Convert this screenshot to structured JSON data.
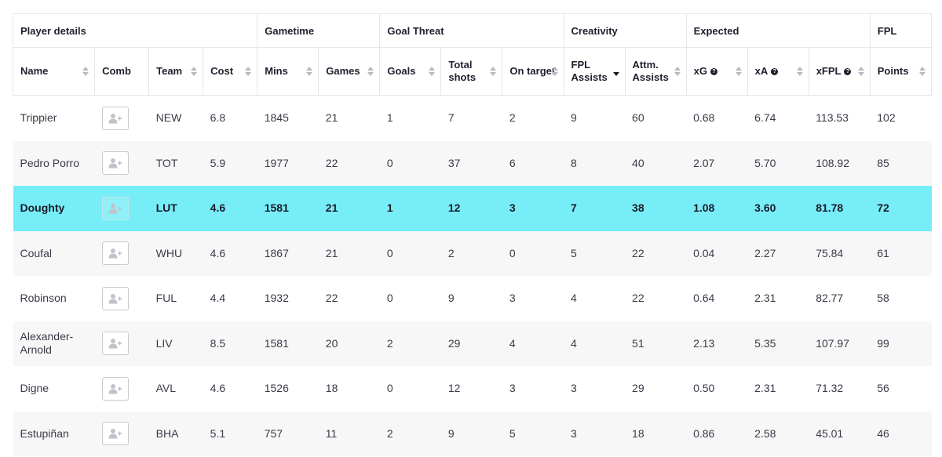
{
  "groups": [
    {
      "label": "Player details",
      "span": 4
    },
    {
      "label": "Gametime",
      "span": 2
    },
    {
      "label": "Goal Threat",
      "span": 3
    },
    {
      "label": "Creativity",
      "span": 2
    },
    {
      "label": "Expected",
      "span": 3
    },
    {
      "label": "FPL",
      "span": 1
    }
  ],
  "columns": [
    {
      "label": "Name",
      "sortable": true,
      "sorted": false,
      "help": false
    },
    {
      "label": "Comb",
      "sortable": false,
      "sorted": false,
      "help": false
    },
    {
      "label": "Team",
      "sortable": true,
      "sorted": false,
      "help": false
    },
    {
      "label": "Cost",
      "sortable": true,
      "sorted": false,
      "help": false
    },
    {
      "label": "Mins",
      "sortable": true,
      "sorted": false,
      "help": false
    },
    {
      "label": "Games",
      "sortable": true,
      "sorted": false,
      "help": false
    },
    {
      "label": "Goals",
      "sortable": true,
      "sorted": false,
      "help": false
    },
    {
      "label": "Total shots",
      "sortable": true,
      "sorted": false,
      "help": false
    },
    {
      "label": "On target",
      "sortable": true,
      "sorted": false,
      "help": false
    },
    {
      "label": "FPL Assists",
      "sortable": true,
      "sorted": true,
      "help": false
    },
    {
      "label": "Attm. Assists",
      "sortable": true,
      "sorted": false,
      "help": false
    },
    {
      "label": "xG",
      "sortable": true,
      "sorted": false,
      "help": true
    },
    {
      "label": "xA",
      "sortable": true,
      "sorted": false,
      "help": true
    },
    {
      "label": "xFPL",
      "sortable": true,
      "sorted": false,
      "help": true
    },
    {
      "label": "Points",
      "sortable": true,
      "sorted": false,
      "help": false
    }
  ],
  "help_glyph": "?",
  "rows": [
    {
      "name": "Trippier",
      "team": "NEW",
      "cost": "6.8",
      "mins": "1845",
      "games": "21",
      "goals": "1",
      "shots": "7",
      "on_target": "2",
      "fpl_assists": "9",
      "attm_assists": "60",
      "xg": "0.68",
      "xa": "6.74",
      "xfpl": "113.53",
      "points": "102",
      "highlight": false
    },
    {
      "name": "Pedro Porro",
      "team": "TOT",
      "cost": "5.9",
      "mins": "1977",
      "games": "22",
      "goals": "0",
      "shots": "37",
      "on_target": "6",
      "fpl_assists": "8",
      "attm_assists": "40",
      "xg": "2.07",
      "xa": "5.70",
      "xfpl": "108.92",
      "points": "85",
      "highlight": false
    },
    {
      "name": "Doughty",
      "team": "LUT",
      "cost": "4.6",
      "mins": "1581",
      "games": "21",
      "goals": "1",
      "shots": "12",
      "on_target": "3",
      "fpl_assists": "7",
      "attm_assists": "38",
      "xg": "1.08",
      "xa": "3.60",
      "xfpl": "81.78",
      "points": "72",
      "highlight": true
    },
    {
      "name": "Coufal",
      "team": "WHU",
      "cost": "4.6",
      "mins": "1867",
      "games": "21",
      "goals": "0",
      "shots": "2",
      "on_target": "0",
      "fpl_assists": "5",
      "attm_assists": "22",
      "xg": "0.04",
      "xa": "2.27",
      "xfpl": "75.84",
      "points": "61",
      "highlight": false
    },
    {
      "name": "Robinson",
      "team": "FUL",
      "cost": "4.4",
      "mins": "1932",
      "games": "22",
      "goals": "0",
      "shots": "9",
      "on_target": "3",
      "fpl_assists": "4",
      "attm_assists": "22",
      "xg": "0.64",
      "xa": "2.31",
      "xfpl": "82.77",
      "points": "58",
      "highlight": false
    },
    {
      "name": "Alexander-Arnold",
      "team": "LIV",
      "cost": "8.5",
      "mins": "1581",
      "games": "20",
      "goals": "2",
      "shots": "29",
      "on_target": "4",
      "fpl_assists": "4",
      "attm_assists": "51",
      "xg": "2.13",
      "xa": "5.35",
      "xfpl": "107.97",
      "points": "99",
      "highlight": false
    },
    {
      "name": "Digne",
      "team": "AVL",
      "cost": "4.6",
      "mins": "1526",
      "games": "18",
      "goals": "0",
      "shots": "12",
      "on_target": "3",
      "fpl_assists": "3",
      "attm_assists": "29",
      "xg": "0.50",
      "xa": "2.31",
      "xfpl": "71.32",
      "points": "56",
      "highlight": false
    },
    {
      "name": "Estupiñan",
      "team": "BHA",
      "cost": "5.1",
      "mins": "757",
      "games": "11",
      "goals": "2",
      "shots": "9",
      "on_target": "5",
      "fpl_assists": "3",
      "attm_assists": "18",
      "xg": "0.86",
      "xa": "2.58",
      "xfpl": "45.01",
      "points": "46",
      "highlight": false
    }
  ],
  "colors": {
    "highlight": "#77eef7",
    "stripe": "#f7f7f8",
    "border": "#e6e6ea"
  },
  "icons": {
    "comb": "add-user-icon",
    "sort": "sort-arrows-icon",
    "help": "help-circle-icon"
  }
}
